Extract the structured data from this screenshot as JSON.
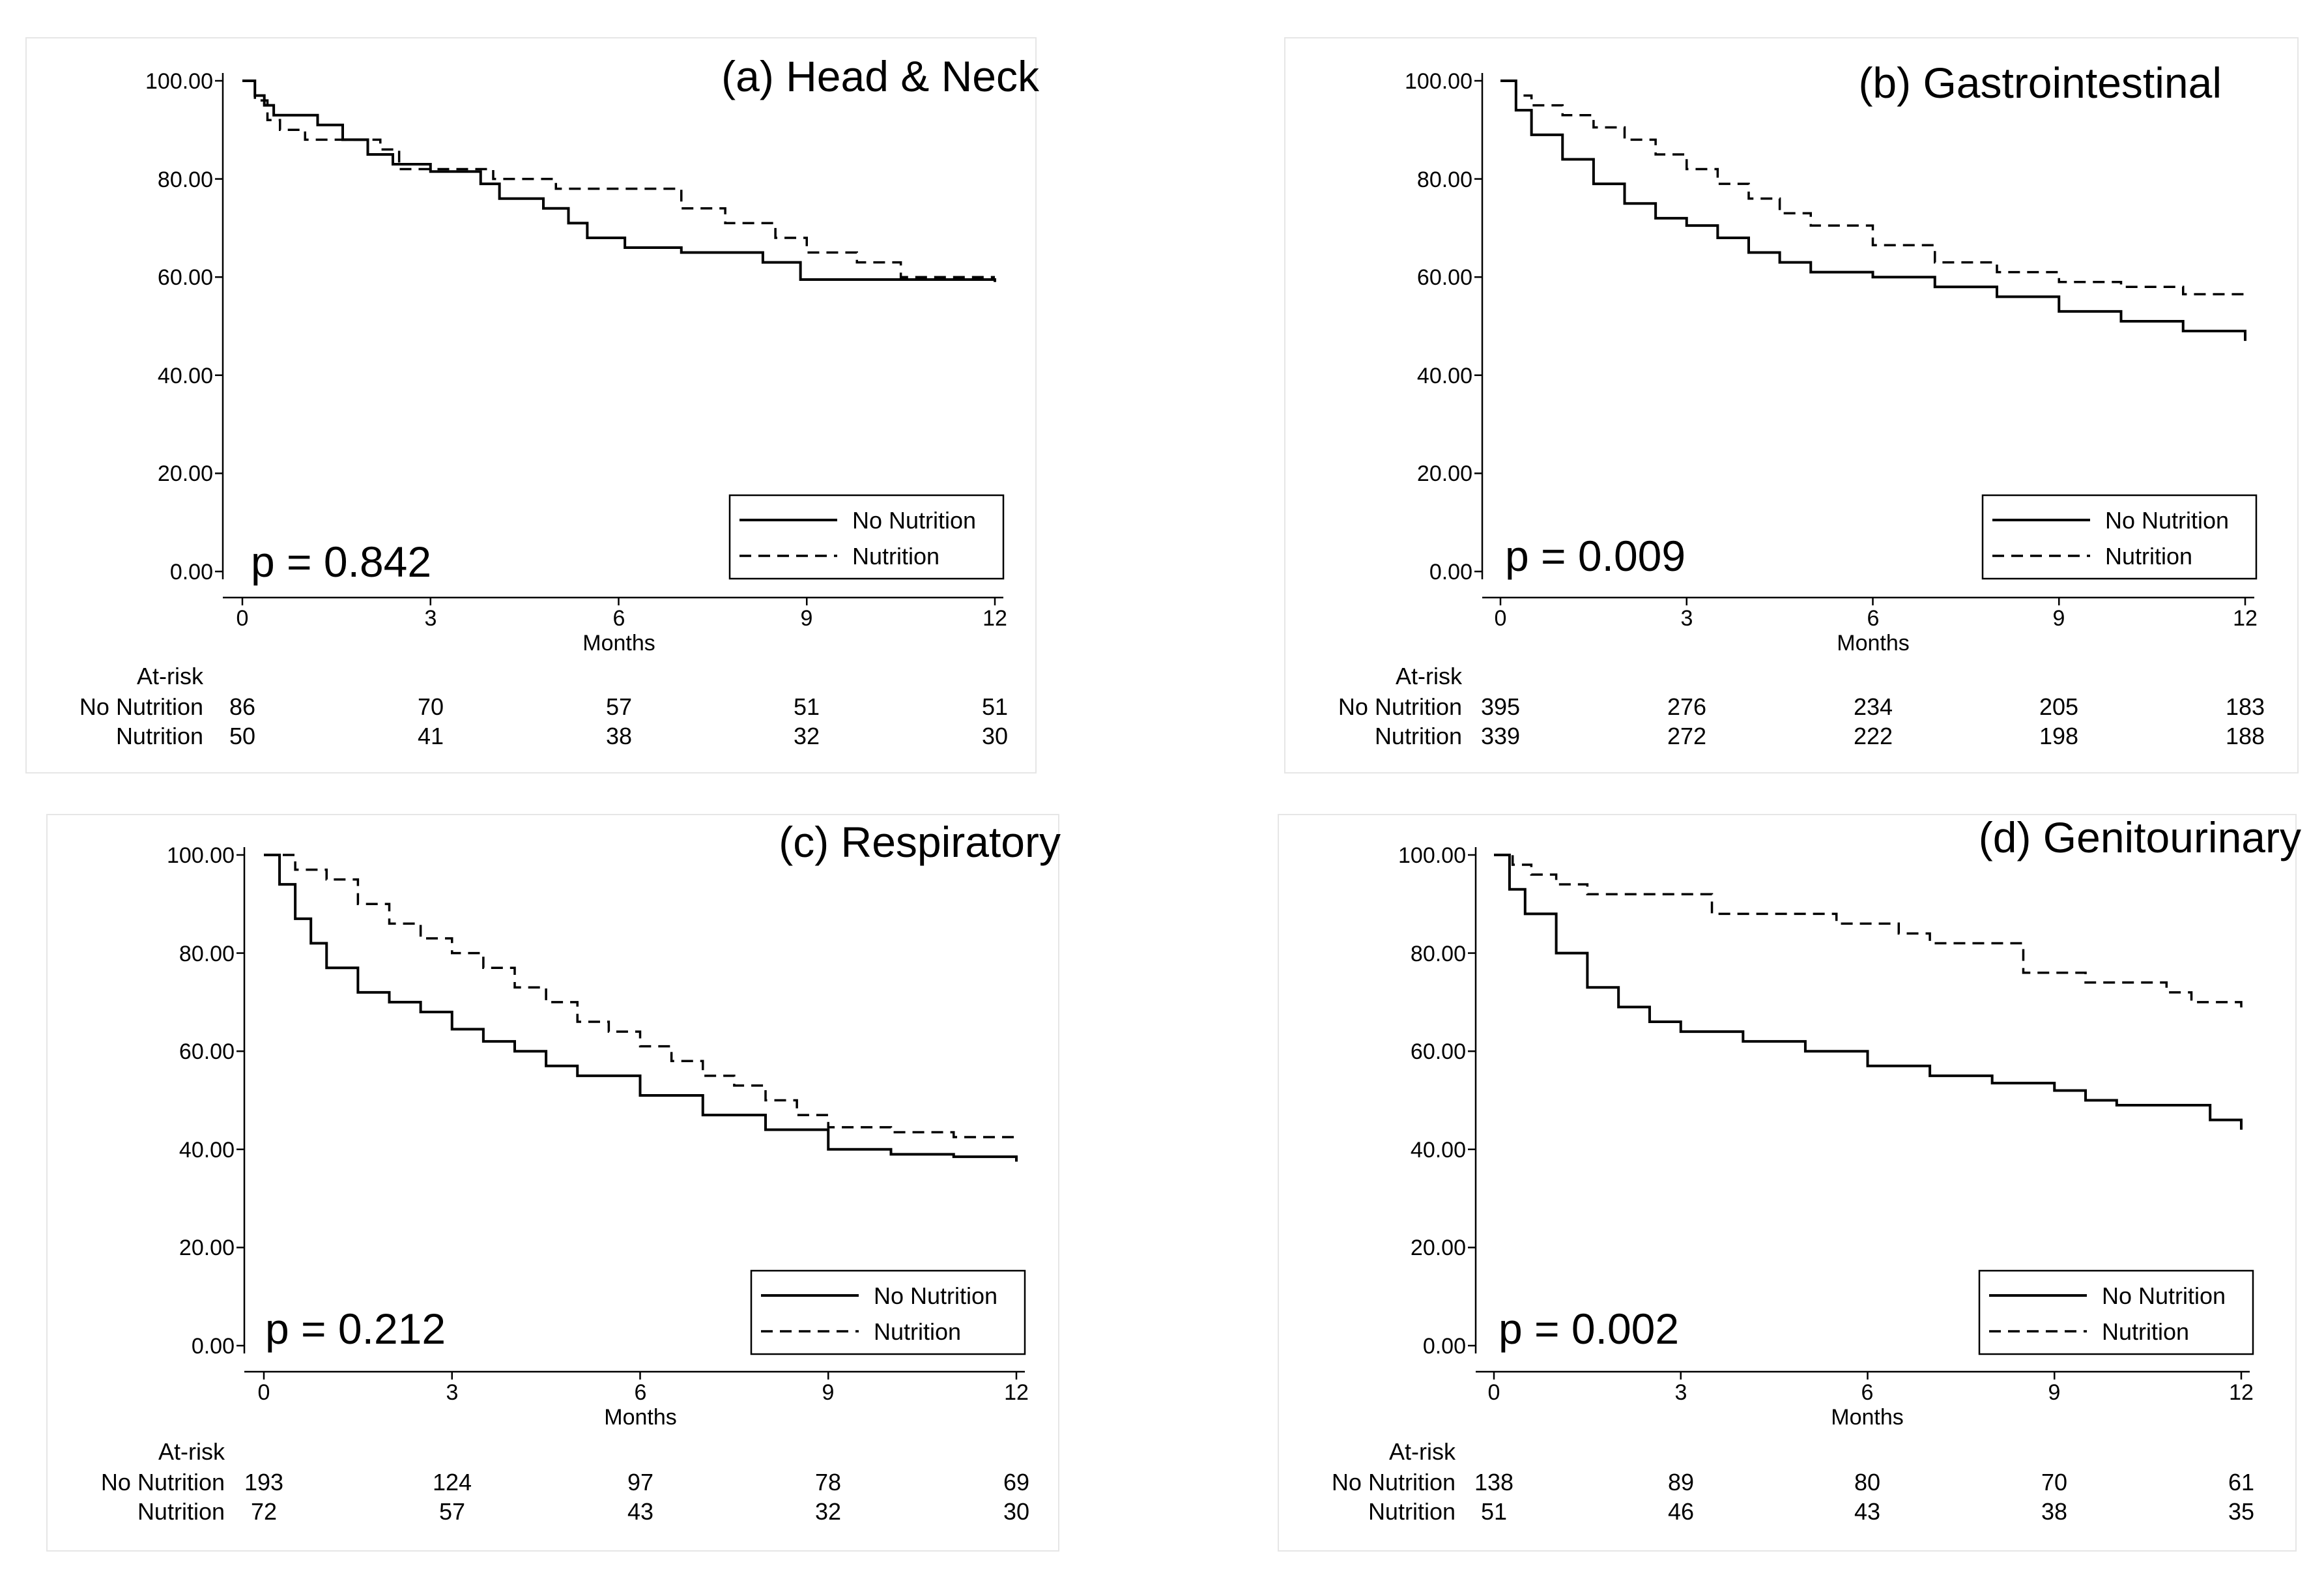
{
  "figure": {
    "panels": [
      {
        "title": "(a) Head & Neck",
        "p_value": "p = 0.842",
        "xlabel": "Months",
        "ytick_labels": [
          "100.00",
          "80.00",
          "60.00",
          "40.00",
          "20.00",
          "0.00"
        ],
        "xtick_labels": [
          "0",
          "3",
          "6",
          "9",
          "12"
        ],
        "legend": [
          "No Nutrition",
          "Nutrition"
        ],
        "at_risk": {
          "label": "At-risk",
          "rows": [
            {
              "label": "No Nutrition",
              "values": [
                "86",
                "70",
                "57",
                "51",
                "51"
              ]
            },
            {
              "label": "Nutrition",
              "values": [
                "50",
                "41",
                "38",
                "32",
                "30"
              ]
            }
          ]
        }
      },
      {
        "title": "(b) Gastrointestinal",
        "p_value": "p = 0.009",
        "xlabel": "Months",
        "ytick_labels": [
          "100.00",
          "80.00",
          "60.00",
          "40.00",
          "20.00",
          "0.00"
        ],
        "xtick_labels": [
          "0",
          "3",
          "6",
          "9",
          "12"
        ],
        "legend": [
          "No Nutrition",
          "Nutrition"
        ],
        "at_risk": {
          "label": "At-risk",
          "rows": [
            {
              "label": "No Nutrition",
              "values": [
                "395",
                "276",
                "234",
                "205",
                "183"
              ]
            },
            {
              "label": "Nutrition",
              "values": [
                "339",
                "272",
                "222",
                "198",
                "188"
              ]
            }
          ]
        }
      },
      {
        "title": "(c) Respiratory",
        "p_value": "p = 0.212",
        "xlabel": "Months",
        "ytick_labels": [
          "100.00",
          "80.00",
          "60.00",
          "40.00",
          "20.00",
          "0.00"
        ],
        "xtick_labels": [
          "0",
          "3",
          "6",
          "9",
          "12"
        ],
        "legend": [
          "No Nutrition",
          "Nutrition"
        ],
        "at_risk": {
          "label": "At-risk",
          "rows": [
            {
              "label": "No Nutrition",
              "values": [
                "193",
                "124",
                "97",
                "78",
                "69"
              ]
            },
            {
              "label": "Nutrition",
              "values": [
                "72",
                "57",
                "43",
                "32",
                "30"
              ]
            }
          ]
        }
      },
      {
        "title": "(d) Genitourinary",
        "p_value": "p = 0.002",
        "xlabel": "Months",
        "ytick_labels": [
          "100.00",
          "80.00",
          "60.00",
          "40.00",
          "20.00",
          "0.00"
        ],
        "xtick_labels": [
          "0",
          "3",
          "6",
          "9",
          "12"
        ],
        "legend": [
          "No Nutrition",
          "Nutrition"
        ],
        "at_risk": {
          "label": "At-risk",
          "rows": [
            {
              "label": "No Nutrition",
              "values": [
                "138",
                "89",
                "80",
                "70",
                "61"
              ]
            },
            {
              "label": "Nutrition",
              "values": [
                "51",
                "46",
                "43",
                "38",
                "35"
              ]
            }
          ]
        }
      }
    ]
  },
  "chart_data": [
    {
      "type": "line",
      "title": "(a) Head & Neck",
      "xlabel": "Months",
      "ylabel": "",
      "xlim": [
        0,
        12
      ],
      "ylim": [
        0,
        100
      ],
      "legend_position": "bottom-right",
      "series": [
        {
          "name": "No Nutrition",
          "style": "solid",
          "x": [
            0,
            0.2,
            0.35,
            0.5,
            1.2,
            1.6,
            2.0,
            2.4,
            3.0,
            3.8,
            4.1,
            4.8,
            5.2,
            5.5,
            6.1,
            7.0,
            8.3,
            8.9,
            12.0
          ],
          "y": [
            100,
            97,
            95,
            93,
            91,
            88,
            85,
            83,
            81.5,
            79,
            76,
            74,
            71,
            68,
            66,
            65,
            63,
            59.5,
            59
          ]
        },
        {
          "name": "Nutrition",
          "style": "dashed",
          "x": [
            0,
            0.2,
            0.4,
            0.6,
            1.0,
            2.2,
            2.5,
            4.0,
            5.0,
            7.0,
            7.7,
            8.5,
            9.0,
            9.8,
            10.5,
            12.0
          ],
          "y": [
            100,
            96,
            92,
            90,
            88,
            86,
            82,
            80,
            78,
            74,
            71,
            68,
            65,
            63,
            60,
            60
          ]
        }
      ]
    },
    {
      "type": "line",
      "title": "(b) Gastrointestinal",
      "xlabel": "Months",
      "ylabel": "",
      "xlim": [
        0,
        12
      ],
      "ylim": [
        0,
        100
      ],
      "legend_position": "bottom-right",
      "series": [
        {
          "name": "No Nutrition",
          "style": "solid",
          "x": [
            0,
            0.25,
            0.5,
            1.0,
            1.5,
            2.0,
            2.5,
            3.0,
            3.5,
            4.0,
            4.5,
            5.0,
            6.0,
            7.0,
            8.0,
            9.0,
            10.0,
            11.0,
            12.0
          ],
          "y": [
            100,
            94,
            89,
            84,
            79,
            75,
            72,
            70.5,
            68,
            65,
            63,
            61,
            60,
            58,
            56,
            53,
            51,
            49,
            47
          ]
        },
        {
          "name": "Nutrition",
          "style": "dashed",
          "x": [
            0,
            0.25,
            0.5,
            1.0,
            1.5,
            2.0,
            2.5,
            3.0,
            3.5,
            4.0,
            4.5,
            5.0,
            6.0,
            7.0,
            8.0,
            9.0,
            10.0,
            11.0,
            12.0
          ],
          "y": [
            100,
            97,
            95,
            93,
            90.5,
            88,
            85,
            82,
            79,
            76,
            73,
            70.5,
            66.5,
            63,
            61,
            59,
            58,
            56.5,
            55.5
          ]
        }
      ]
    },
    {
      "type": "line",
      "title": "(c) Respiratory",
      "xlabel": "Months",
      "ylabel": "",
      "xlim": [
        0,
        12
      ],
      "ylim": [
        0,
        100
      ],
      "legend_position": "bottom-right",
      "series": [
        {
          "name": "No Nutrition",
          "style": "solid",
          "x": [
            0,
            0.25,
            0.5,
            0.75,
            1.0,
            1.5,
            2.0,
            2.5,
            3.0,
            3.5,
            4.0,
            4.5,
            5.0,
            6.0,
            7.0,
            8.0,
            9.0,
            10.0,
            11.0,
            12.0
          ],
          "y": [
            100,
            94,
            87,
            82,
            77,
            72,
            70,
            68,
            64.5,
            62,
            60,
            57,
            55,
            51,
            47,
            44,
            40,
            39,
            38.5,
            37.5
          ]
        },
        {
          "name": "Nutrition",
          "style": "dashed",
          "x": [
            0,
            0.5,
            1.0,
            1.5,
            2.0,
            2.5,
            3.0,
            3.5,
            4.0,
            4.5,
            5.0,
            5.5,
            6.0,
            6.5,
            7.0,
            7.5,
            8.0,
            8.5,
            9.0,
            10.0,
            11.0,
            12.0
          ],
          "y": [
            100,
            97,
            95,
            90,
            86,
            83,
            80,
            77,
            73,
            70,
            66,
            64,
            61,
            58,
            55,
            53,
            50,
            47,
            44.5,
            43.5,
            42.5,
            42
          ]
        }
      ]
    },
    {
      "type": "line",
      "title": "(d) Genitourinary",
      "xlabel": "Months",
      "ylabel": "",
      "xlim": [
        0,
        12
      ],
      "ylim": [
        0,
        100
      ],
      "legend_position": "bottom-right",
      "series": [
        {
          "name": "No Nutrition",
          "style": "solid",
          "x": [
            0,
            0.25,
            0.5,
            1.0,
            1.5,
            2.0,
            2.5,
            3.0,
            4.0,
            5.0,
            6.0,
            7.0,
            8.0,
            9.0,
            9.5,
            10.0,
            11.0,
            11.5,
            12.0
          ],
          "y": [
            100,
            93,
            88,
            80,
            73,
            69,
            66,
            64,
            62,
            60,
            57,
            55,
            53.5,
            52,
            50,
            49,
            49,
            46,
            44
          ]
        },
        {
          "name": "Nutrition",
          "style": "dashed",
          "x": [
            0,
            0.3,
            0.6,
            1.0,
            1.5,
            3.0,
            3.5,
            5.5,
            6.5,
            7.0,
            7.8,
            8.5,
            9.5,
            10.3,
            10.8,
            11.2,
            12.0
          ],
          "y": [
            100,
            98,
            96,
            94,
            92,
            92,
            88,
            86,
            84,
            82,
            82,
            76,
            74,
            74,
            72,
            70,
            68.5
          ]
        }
      ]
    }
  ]
}
